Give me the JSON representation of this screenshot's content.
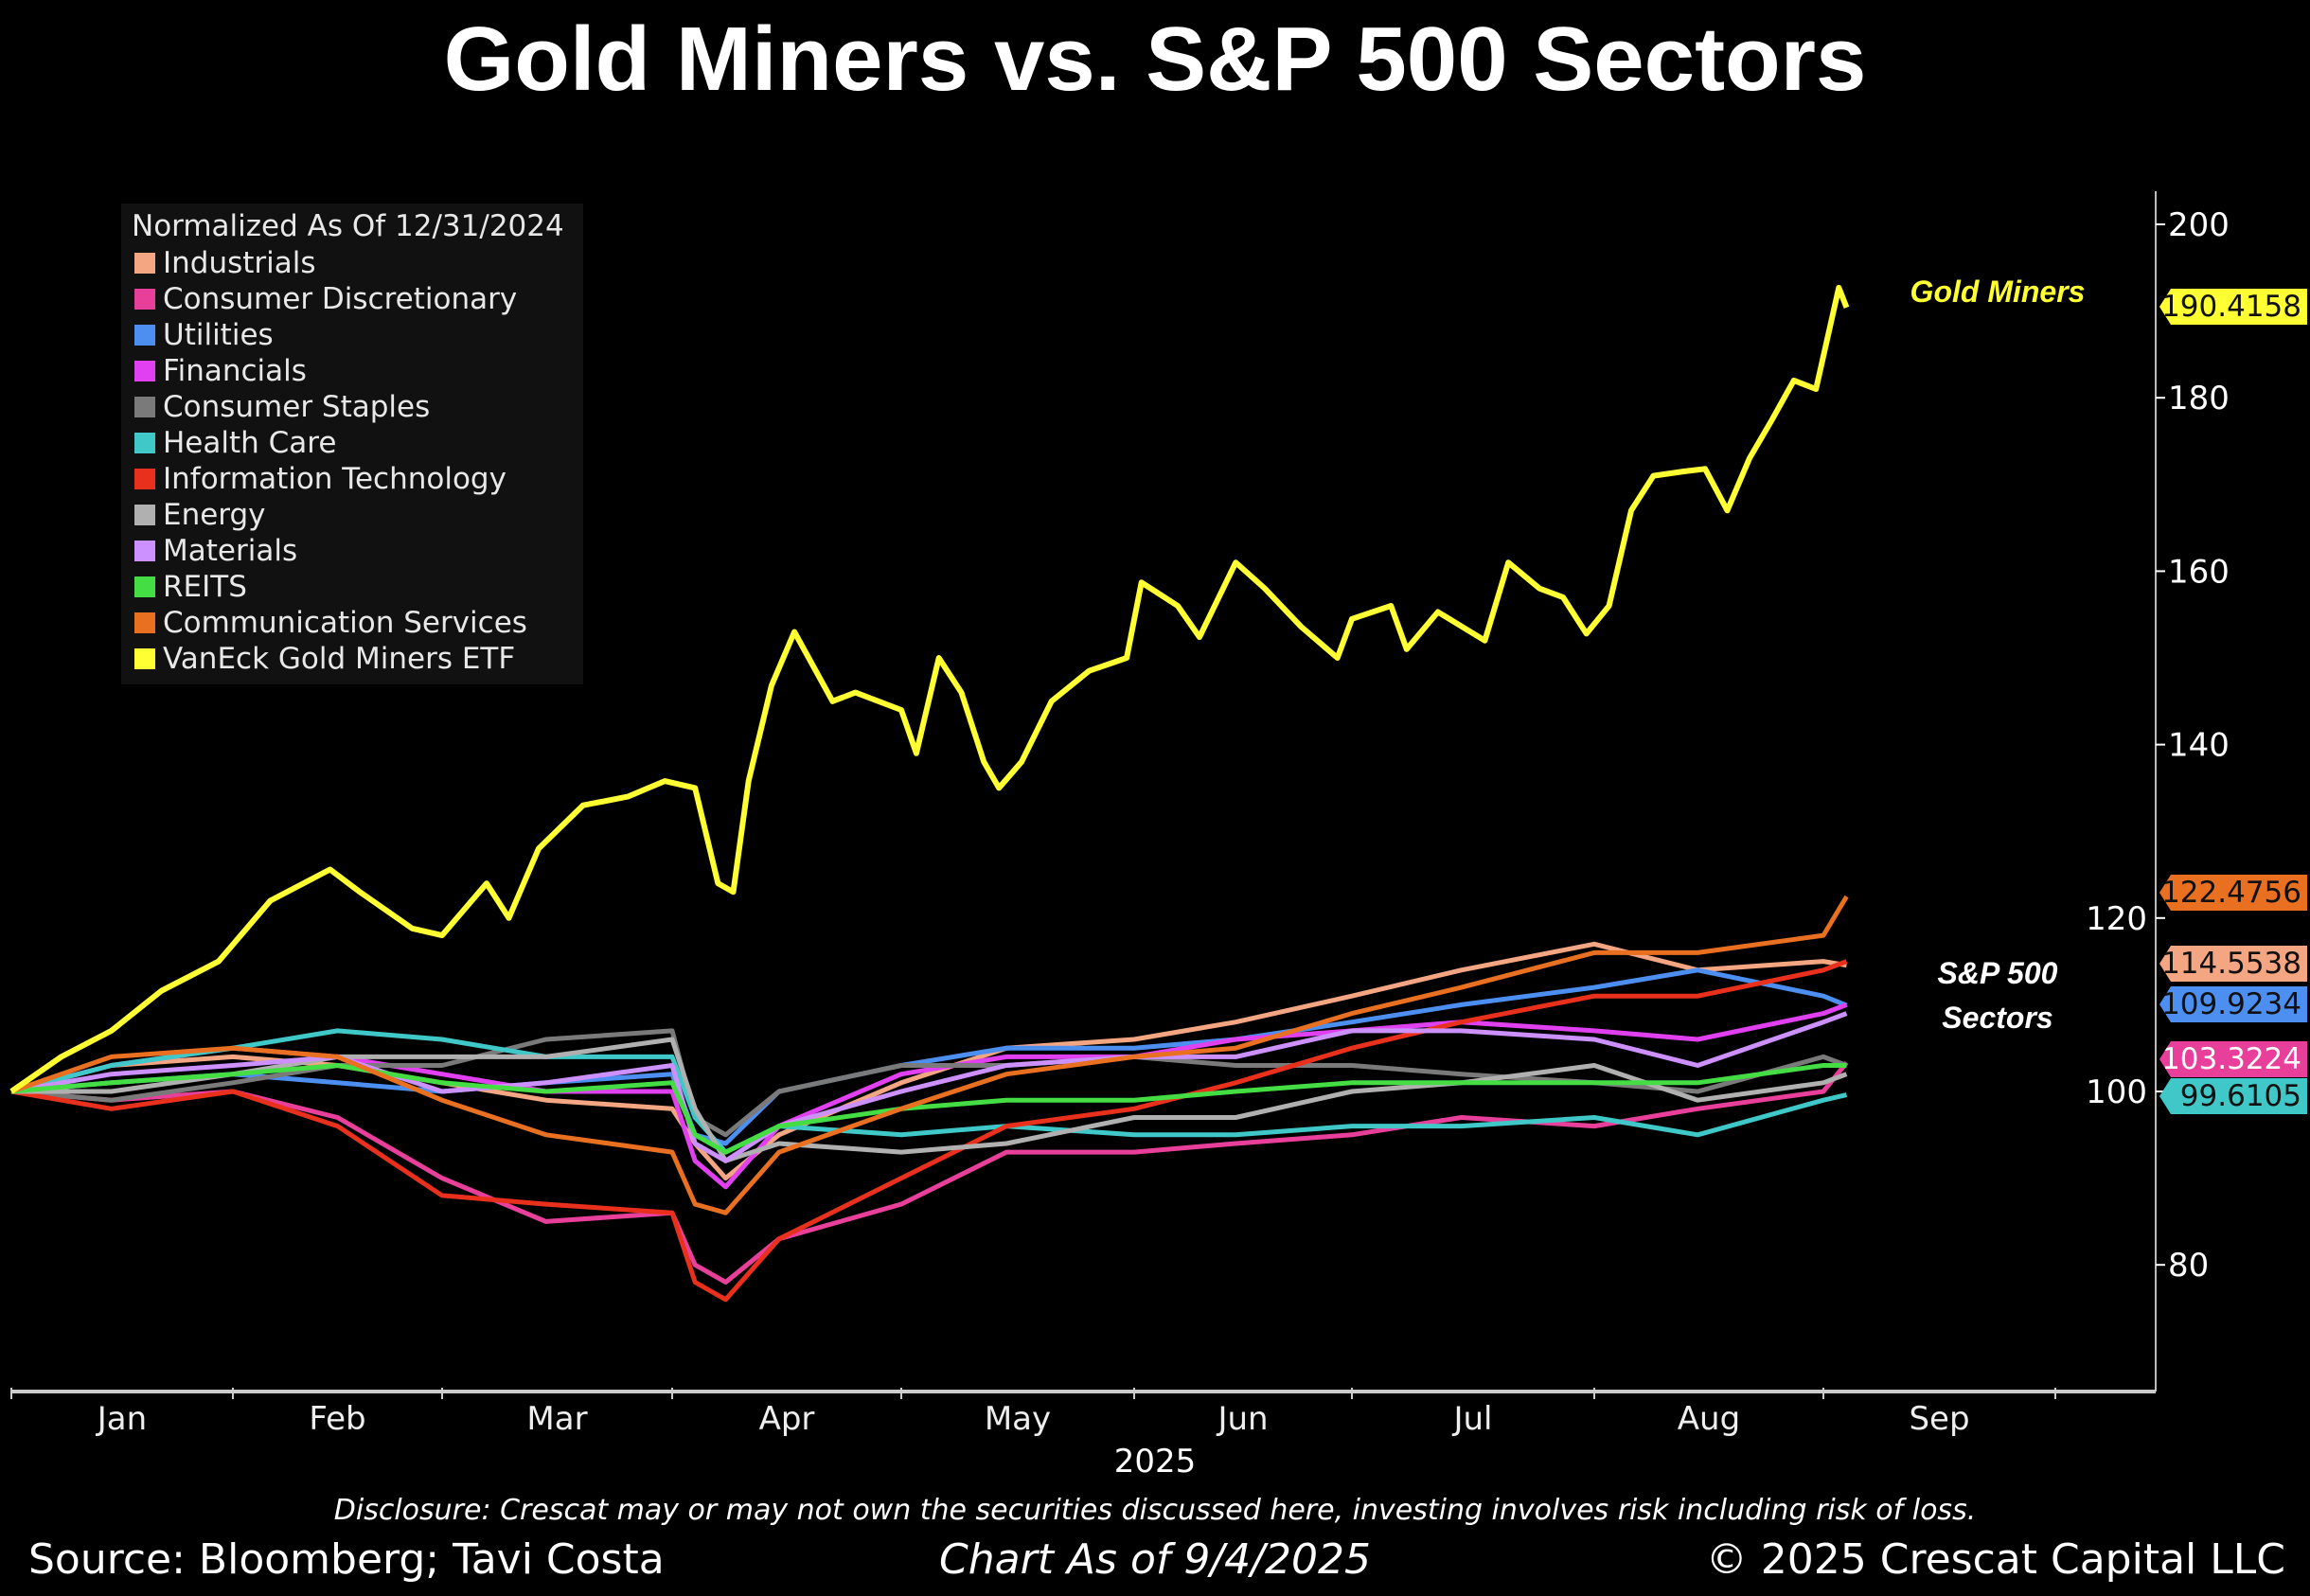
{
  "title": "Gold Miners vs. S&P 500 Sectors",
  "chart_data": {
    "type": "line",
    "title": "Gold Miners vs. S&P 500 Sectors",
    "legend_title": "Normalized As Of 12/31/2024",
    "legend_position": "top-left",
    "xlabel": "2025",
    "x_tick_labels": [
      "Jan",
      "Feb",
      "Mar",
      "Apr",
      "May",
      "Jun",
      "Jul",
      "Aug",
      "Sep"
    ],
    "ylim": [
      65,
      205
    ],
    "y_ticks": [
      80,
      100,
      120,
      140,
      160,
      180,
      200
    ],
    "y_axis_side": "right",
    "grid": false,
    "sector_dates": [
      "2024-12-31",
      "2025-01-15",
      "2025-02-01",
      "2025-02-15",
      "2025-03-01",
      "2025-03-15",
      "2025-04-01",
      "2025-04-04",
      "2025-04-08",
      "2025-04-15",
      "2025-05-01",
      "2025-05-15",
      "2025-06-01",
      "2025-06-15",
      "2025-07-01",
      "2025-07-15",
      "2025-08-01",
      "2025-08-15",
      "2025-09-01",
      "2025-09-04"
    ],
    "series": [
      {
        "name": "Industrials",
        "color": "#f4a582",
        "values": [
          100,
          103,
          104,
          103,
          101,
          99,
          98,
          94,
          90,
          95,
          101,
          105,
          106,
          108,
          111,
          114,
          117,
          114,
          115,
          114.55
        ]
      },
      {
        "name": "Consumer Discretionary",
        "color": "#e8409a",
        "values": [
          100,
          99,
          100,
          97,
          90,
          85,
          86,
          80,
          78,
          83,
          87,
          93,
          93,
          94,
          95,
          97,
          96,
          98,
          100,
          103.32
        ]
      },
      {
        "name": "Utilities",
        "color": "#4d8ff0",
        "values": [
          100,
          101,
          102,
          101,
          100,
          101,
          102,
          95,
          94,
          100,
          103,
          105,
          105,
          106,
          108,
          110,
          112,
          114,
          111,
          109.92
        ]
      },
      {
        "name": "Financials",
        "color": "#e040f0",
        "values": [
          100,
          103,
          105,
          104,
          102,
          100,
          100,
          92,
          89,
          96,
          102,
          104,
          104,
          106,
          107,
          108,
          107,
          106,
          109,
          110
        ]
      },
      {
        "name": "Consumer Staples",
        "color": "#7a7a7a",
        "values": [
          100,
          99,
          101,
          103,
          103,
          106,
          107,
          97,
          95,
          100,
          103,
          103,
          104,
          103,
          103,
          102,
          101,
          100,
          104,
          103
        ]
      },
      {
        "name": "Health Care",
        "color": "#40c8c8",
        "values": [
          100,
          103,
          105,
          107,
          106,
          104,
          104,
          97,
          93,
          96,
          95,
          96,
          95,
          95,
          96,
          96,
          97,
          95,
          99,
          99.61
        ]
      },
      {
        "name": "Information Technology",
        "color": "#e8301c",
        "values": [
          100,
          98,
          100,
          96,
          88,
          87,
          86,
          78,
          76,
          83,
          90,
          96,
          98,
          101,
          105,
          108,
          111,
          111,
          114,
          115
        ]
      },
      {
        "name": "Energy",
        "color": "#b0b0b0",
        "values": [
          100,
          100,
          102,
          104,
          104,
          104,
          106,
          98,
          92,
          94,
          93,
          94,
          97,
          97,
          100,
          101,
          103,
          99,
          101,
          102
        ]
      },
      {
        "name": "Materials",
        "color": "#cc90ff",
        "values": [
          100,
          102,
          103,
          104,
          100,
          101,
          103,
          94,
          92,
          96,
          100,
          103,
          104,
          104,
          107,
          107,
          106,
          103,
          108,
          109
        ]
      },
      {
        "name": "REITS",
        "color": "#44dd44",
        "values": [
          100,
          101,
          102,
          103,
          101,
          100,
          101,
          95,
          93,
          96,
          98,
          99,
          99,
          100,
          101,
          101,
          101,
          101,
          103,
          103
        ]
      },
      {
        "name": "Communication Services",
        "color": "#e87020",
        "values": [
          100,
          104,
          105,
          104,
          99,
          95,
          93,
          87,
          86,
          93,
          98,
          102,
          104,
          105,
          109,
          112,
          116,
          116,
          118,
          122.48
        ]
      }
    ],
    "gold_series": {
      "name": "VanEck Gold Miners ETF",
      "color": "#ffff33",
      "dates": [
        "2024-12-31",
        "2025-01-08",
        "2025-01-15",
        "2025-01-22",
        "2025-01-30",
        "2025-02-06",
        "2025-02-14",
        "2025-02-18",
        "2025-02-25",
        "2025-03-01",
        "2025-03-07",
        "2025-03-10",
        "2025-03-14",
        "2025-03-20",
        "2025-03-26",
        "2025-03-31",
        "2025-04-04",
        "2025-04-07",
        "2025-04-09",
        "2025-04-11",
        "2025-04-14",
        "2025-04-17",
        "2025-04-22",
        "2025-04-25",
        "2025-05-01",
        "2025-05-03",
        "2025-05-06",
        "2025-05-09",
        "2025-05-12",
        "2025-05-14",
        "2025-05-17",
        "2025-05-21",
        "2025-05-26",
        "2025-05-31",
        "2025-06-02",
        "2025-06-07",
        "2025-06-10",
        "2025-06-15",
        "2025-06-19",
        "2025-06-24",
        "2025-06-29",
        "2025-07-01",
        "2025-07-06",
        "2025-07-08",
        "2025-07-12",
        "2025-07-18",
        "2025-07-21",
        "2025-07-25",
        "2025-07-28",
        "2025-07-31",
        "2025-08-03",
        "2025-08-06",
        "2025-08-09",
        "2025-08-13",
        "2025-08-16",
        "2025-08-19",
        "2025-08-22",
        "2025-08-25",
        "2025-08-28",
        "2025-08-31",
        "2025-09-03",
        "2025-09-04"
      ],
      "values": [
        100,
        104,
        107,
        111.6,
        115,
        122,
        125.6,
        123,
        118.8,
        118,
        124,
        120,
        128,
        133,
        134,
        135.8,
        135,
        124,
        123,
        135.8,
        146.8,
        153,
        145,
        146,
        144,
        139,
        150,
        146,
        138,
        135,
        138,
        145,
        148.5,
        150,
        158.7,
        156,
        152.4,
        161,
        158,
        153.6,
        150,
        154.5,
        156,
        151,
        155.3,
        152,
        161,
        158,
        157,
        152.8,
        156,
        167,
        171,
        171.5,
        171.8,
        167,
        173,
        177.4,
        182,
        181,
        192.7,
        190.4
      ]
    },
    "last_value_tags": [
      {
        "label": "190.4158",
        "value": 190.4158,
        "color": "#ffff33",
        "text_color": "#111111"
      },
      {
        "label": "122.4756",
        "value": 122.4756,
        "color": "#e87020",
        "text_color": "#111111"
      },
      {
        "label": "114.5538",
        "value": 114.5538,
        "color": "#f4a582",
        "text_color": "#111111"
      },
      {
        "label": "109.9234",
        "value": 109.9234,
        "color": "#4d8ff0",
        "text_color": "#111111"
      },
      {
        "label": "103.3224",
        "value": 103.3224,
        "color": "#e8409a",
        "text_color": "#ffffff"
      },
      {
        "label": "99.6105",
        "value": 99.6105,
        "color": "#40c8c8",
        "text_color": "#111111"
      }
    ],
    "annotations": {
      "gold": "Gold Miners",
      "sectors_line1": "S&P 500",
      "sectors_line2": "Sectors"
    }
  },
  "footer": {
    "disclosure": "Disclosure: Crescat may or may not own the securities discussed here, investing involves risk including risk of loss.",
    "source": "Source: Bloomberg; Tavi Costa",
    "as_of": "Chart As of 9/4/2025",
    "copyright": "© 2025 Crescat Capital LLC"
  }
}
